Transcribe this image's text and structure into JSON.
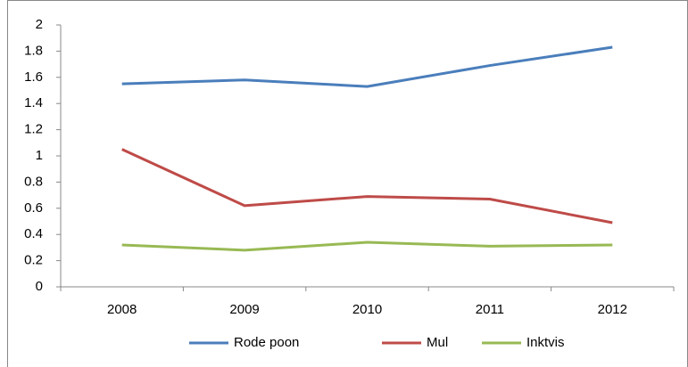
{
  "chart_data": {
    "type": "line",
    "categories": [
      "2008",
      "2009",
      "2010",
      "2011",
      "2012"
    ],
    "series": [
      {
        "name": "Rode poon",
        "color": "#4a7ebb",
        "values": [
          1.55,
          1.58,
          1.53,
          1.69,
          1.83
        ]
      },
      {
        "name": "Mul",
        "color": "#be4b48",
        "values": [
          1.05,
          0.62,
          0.69,
          0.67,
          0.49
        ]
      },
      {
        "name": "Inktvis",
        "color": "#98b954",
        "values": [
          0.32,
          0.28,
          0.34,
          0.31,
          0.32
        ]
      }
    ],
    "ylim": [
      0,
      2
    ],
    "yticks": [
      0,
      0.2,
      0.4,
      0.6,
      0.8,
      1,
      1.2,
      1.4,
      1.6,
      1.8,
      2
    ],
    "grid": false,
    "legend": "bottom"
  }
}
